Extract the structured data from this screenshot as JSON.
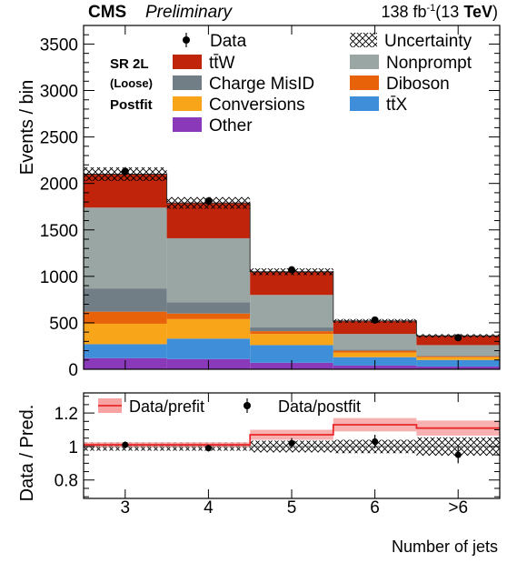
{
  "header": {
    "experiment": "CMS",
    "status": "Preliminary",
    "luminosity_prefix": "138 fb",
    "luminosity_exponent": "-1",
    "energy_prefix": "(13 ",
    "energy_unit": "TeV",
    "energy_suffix": ")"
  },
  "region": {
    "line1": "SR 2L",
    "line2": "(Loose)",
    "line3": "Postfit"
  },
  "colors": {
    "ttW": "#c0250b",
    "nonprompt": "#9aa6a3",
    "charge_misid": "#717e86",
    "diboson": "#e8620a",
    "conversions": "#f9a51a",
    "ttX": "#3e8ed9",
    "other": "#8a3ab8",
    "prefit_band": "#f7a3a3",
    "prefit_line": "#e8282a"
  },
  "chart_data": [
    {
      "type": "bar",
      "stacked": true,
      "categories": [
        "3",
        "4",
        "5",
        "6",
        ">6"
      ],
      "xlabel": "Number of jets",
      "ylabel": "Events / bin",
      "ylim": [
        0,
        3700
      ],
      "yticks": [
        "0",
        "500",
        "1000",
        "1500",
        "2000",
        "2500",
        "3000",
        "3500"
      ],
      "legend_placement": "top",
      "series": [
        {
          "name": "Other",
          "key": "other",
          "values": [
            120,
            110,
            70,
            40,
            30
          ]
        },
        {
          "name": "tt̄X",
          "key": "ttX",
          "values": [
            150,
            220,
            190,
            90,
            70
          ]
        },
        {
          "name": "Conversions",
          "key": "conversions",
          "values": [
            220,
            210,
            120,
            50,
            30
          ]
        },
        {
          "name": "Diboson",
          "key": "diboson",
          "values": [
            130,
            60,
            30,
            20,
            10
          ]
        },
        {
          "name": "Charge MisID",
          "key": "charge_misid",
          "values": [
            250,
            120,
            40,
            10,
            10
          ]
        },
        {
          "name": "Nonprompt",
          "key": "nonprompt",
          "values": [
            870,
            690,
            350,
            170,
            110
          ]
        },
        {
          "name": "tt̄W",
          "key": "ttW",
          "values": [
            360,
            380,
            250,
            140,
            100
          ]
        }
      ],
      "data": {
        "name": "Data",
        "values": [
          2130,
          1810,
          1070,
          530,
          340
        ],
        "errors": [
          46,
          43,
          33,
          23,
          18
        ]
      },
      "uncertainty": {
        "name": "Uncertainty",
        "fraction": [
          0.035,
          0.035,
          0.035,
          0.04,
          0.05
        ]
      }
    },
    {
      "type": "line",
      "categories": [
        "3",
        "4",
        "5",
        "6",
        ">6"
      ],
      "ylabel": "Data / Pred.",
      "ylim": [
        0.69,
        1.32
      ],
      "yticks": [
        "0.8",
        "1",
        "1.2"
      ],
      "legend_placement": "top",
      "prefit": {
        "name": "Data/prefit",
        "values": [
          1.01,
          1.01,
          1.07,
          1.13,
          1.11
        ],
        "band": [
          0.015,
          0.015,
          0.03,
          0.04,
          0.045
        ]
      },
      "postfit": {
        "name": "Data/postfit",
        "values": [
          1.01,
          0.99,
          1.02,
          1.03,
          0.95
        ],
        "errors": [
          0.02,
          0.02,
          0.03,
          0.04,
          0.05
        ]
      },
      "uncertainty": {
        "band": [
          0.025,
          0.025,
          0.035,
          0.04,
          0.055
        ]
      }
    }
  ]
}
